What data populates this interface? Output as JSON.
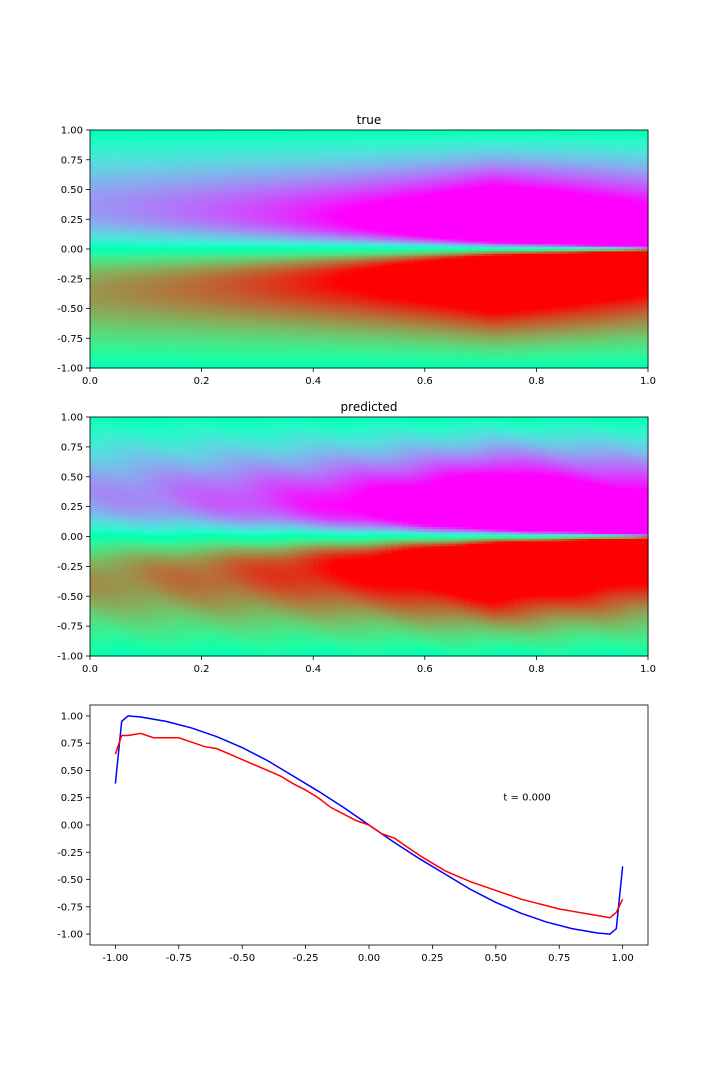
{
  "chart_data": [
    {
      "type": "heatmap",
      "title": "true",
      "xlabel": "",
      "ylabel": "",
      "xlim": [
        0,
        1
      ],
      "ylim": [
        -1,
        1
      ],
      "x_ticks": [
        "0.0",
        "0.2",
        "0.4",
        "0.6",
        "0.8",
        "1.0"
      ],
      "y_ticks": [
        "1.00",
        "0.75",
        "0.50",
        "0.25",
        "0.00",
        "-0.25",
        "-0.50",
        "-0.75",
        "-1.00"
      ],
      "colormap": "rainbow",
      "field": "u(t, x), x in [-1, 1], t in [0, 1]; u(0,x) = -sin(pi x)",
      "value_range": [
        -1,
        1
      ]
    },
    {
      "type": "heatmap",
      "title": "predicted",
      "xlabel": "",
      "ylabel": "",
      "xlim": [
        0,
        1
      ],
      "ylim": [
        -1,
        1
      ],
      "x_ticks": [
        "0.0",
        "0.2",
        "0.4",
        "0.6",
        "0.8",
        "1.0"
      ],
      "y_ticks": [
        "1.00",
        "0.75",
        "0.50",
        "0.25",
        "0.00",
        "-0.25",
        "-0.50",
        "-0.75",
        "-1.00"
      ],
      "colormap": "rainbow",
      "value_range": [
        -1,
        1
      ]
    },
    {
      "type": "line",
      "title": "",
      "xlim": [
        -1.1,
        1.1
      ],
      "ylim": [
        -1.1,
        1.1
      ],
      "x_ticks": [
        "-1.00",
        "-0.75",
        "-0.50",
        "-0.25",
        "0.00",
        "0.25",
        "0.50",
        "0.75",
        "1.00"
      ],
      "y_ticks": [
        "1.00",
        "0.75",
        "0.50",
        "0.25",
        "0.00",
        "-0.25",
        "-0.50",
        "-0.75",
        "-1.00"
      ],
      "annotation": {
        "text": "t = 0.000",
        "x": 0.53,
        "y": 0.25
      },
      "series": [
        {
          "color": "#0000ff",
          "x": [
            -1.0,
            -0.975,
            -0.95,
            -0.9,
            -0.8,
            -0.7,
            -0.6,
            -0.5,
            -0.4,
            -0.3,
            -0.2,
            -0.1,
            0.0,
            0.1,
            0.2,
            0.3,
            0.4,
            0.5,
            0.6,
            0.7,
            0.8,
            0.9,
            0.95,
            0.975,
            1.0
          ],
          "y": [
            0.38,
            0.95,
            1.0,
            0.99,
            0.95,
            0.89,
            0.81,
            0.71,
            0.59,
            0.45,
            0.31,
            0.16,
            0.0,
            -0.16,
            -0.31,
            -0.45,
            -0.59,
            -0.71,
            -0.81,
            -0.89,
            -0.95,
            -0.99,
            -1.0,
            -0.95,
            -0.38
          ]
        },
        {
          "color": "#ff0000",
          "x": [
            -1.0,
            -0.975,
            -0.95,
            -0.9,
            -0.85,
            -0.8,
            -0.75,
            -0.7,
            -0.65,
            -0.6,
            -0.55,
            -0.5,
            -0.45,
            -0.4,
            -0.35,
            -0.3,
            -0.25,
            -0.2,
            -0.15,
            -0.1,
            -0.05,
            0.0,
            0.05,
            0.1,
            0.15,
            0.2,
            0.25,
            0.3,
            0.35,
            0.4,
            0.45,
            0.5,
            0.55,
            0.6,
            0.65,
            0.7,
            0.75,
            0.8,
            0.85,
            0.9,
            0.95,
            0.975,
            1.0
          ],
          "y": [
            0.65,
            0.82,
            0.82,
            0.84,
            0.8,
            0.8,
            0.8,
            0.76,
            0.72,
            0.7,
            0.65,
            0.6,
            0.55,
            0.5,
            0.45,
            0.38,
            0.32,
            0.25,
            0.16,
            0.1,
            0.04,
            0.0,
            -0.08,
            -0.12,
            -0.2,
            -0.28,
            -0.35,
            -0.42,
            -0.47,
            -0.52,
            -0.56,
            -0.6,
            -0.64,
            -0.68,
            -0.71,
            -0.74,
            -0.77,
            -0.79,
            -0.81,
            -0.83,
            -0.85,
            -0.8,
            -0.68
          ]
        }
      ]
    }
  ]
}
